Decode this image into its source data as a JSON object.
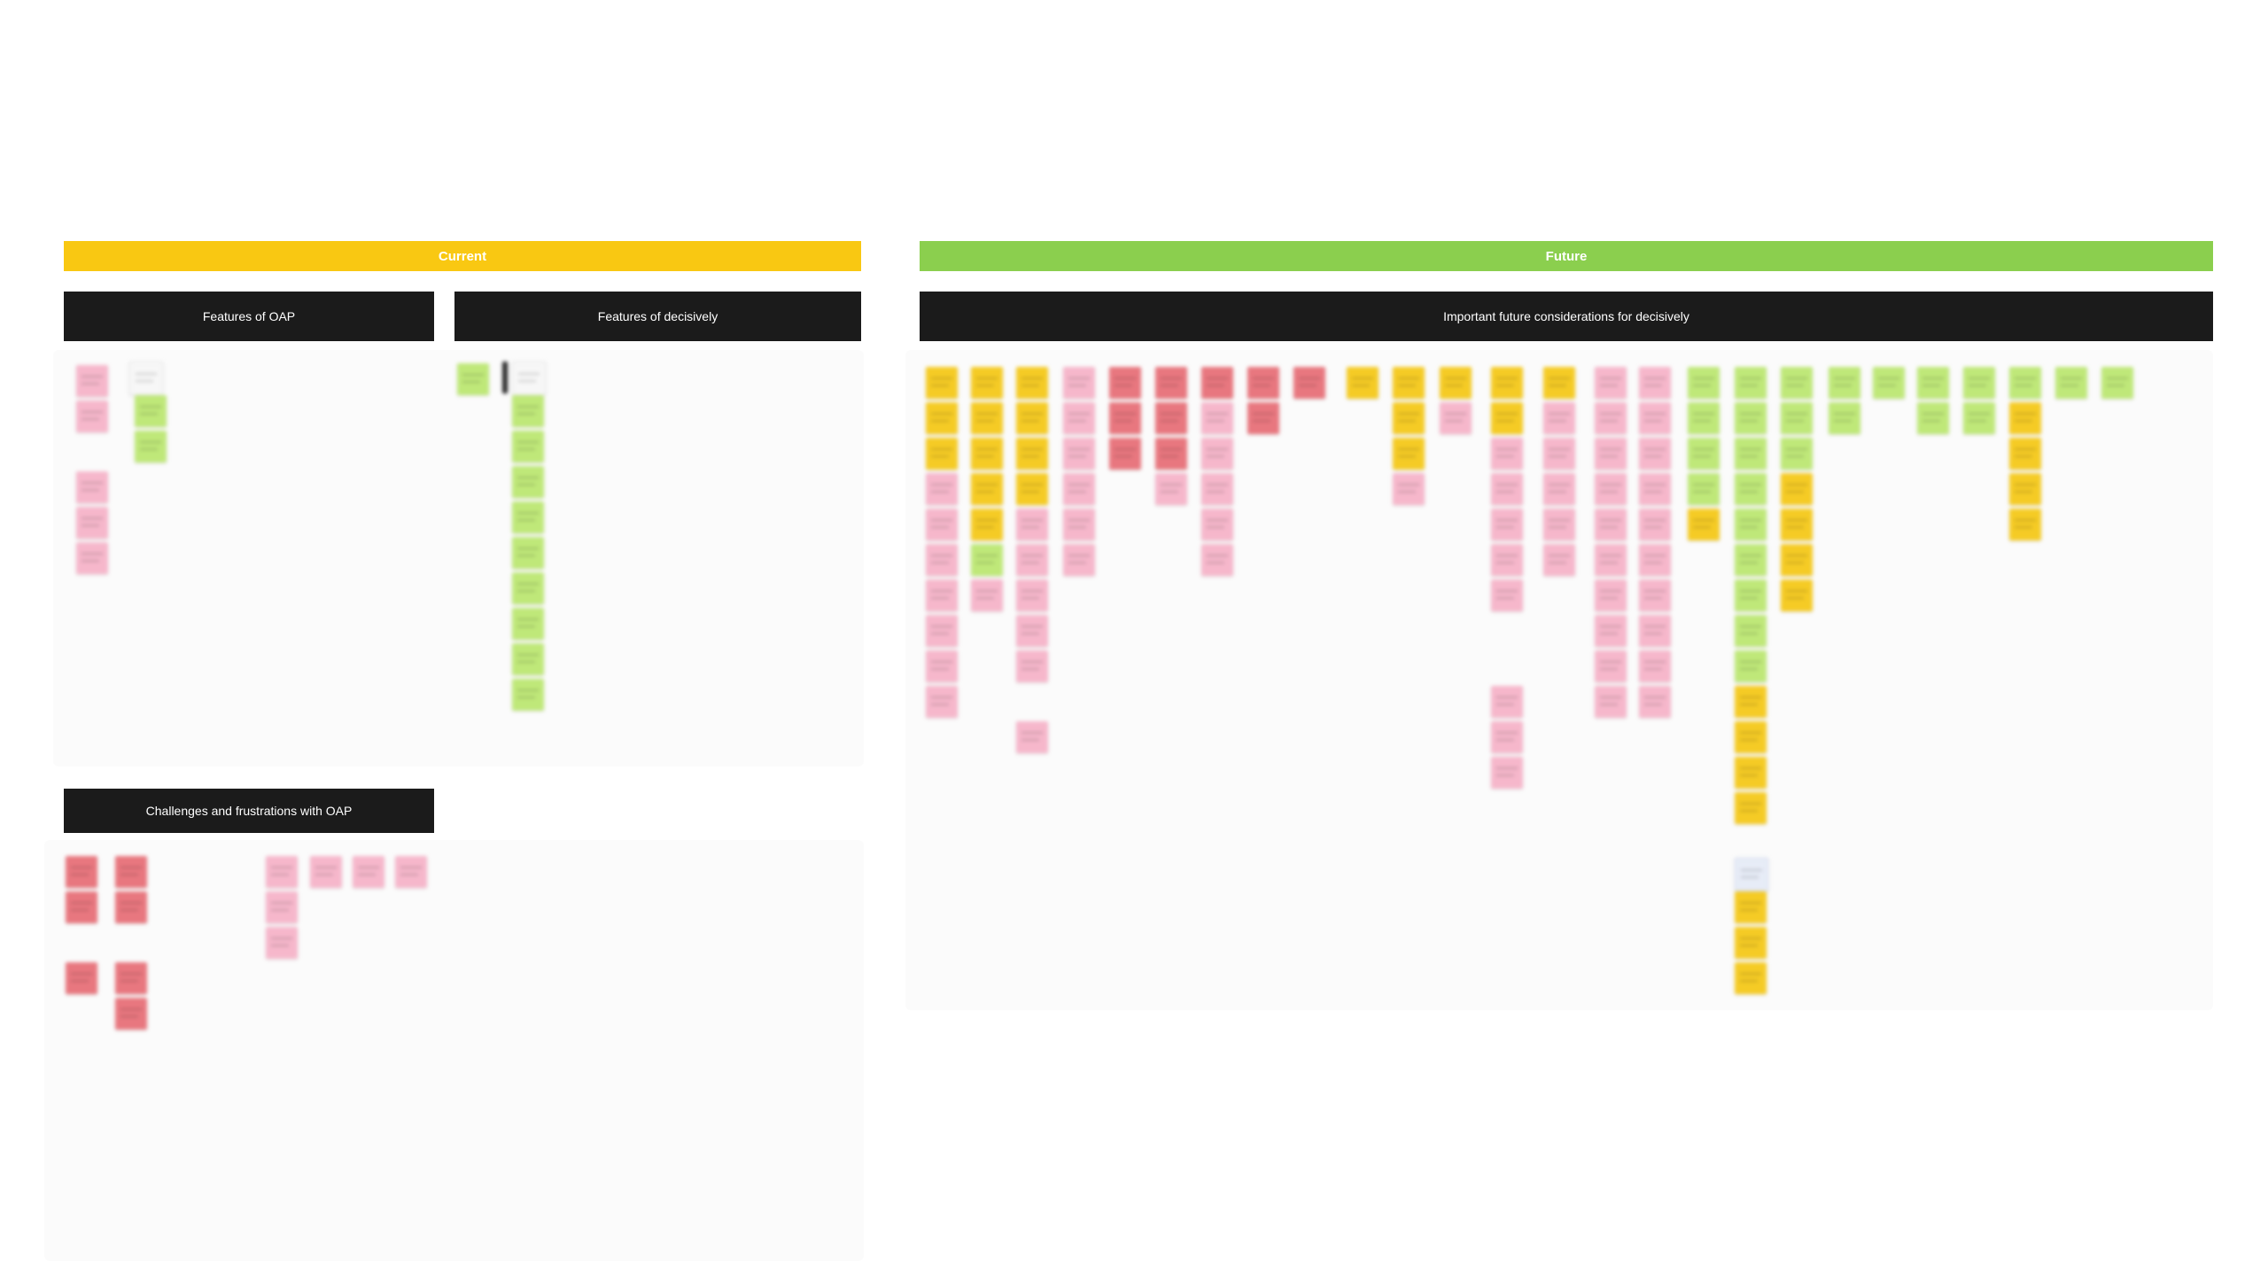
{
  "board": {
    "bands": {
      "current": {
        "label": "Current",
        "color": "#f9c812"
      },
      "future": {
        "label": "Future",
        "color": "#8bcf4e"
      }
    },
    "headings": {
      "features_oap": "Features of OAP",
      "features_decisively": "Features of decisively",
      "future_considerations": "Important future considerations for decisively",
      "challenges_oap": "Challenges and frustrations with OAP"
    },
    "note_colors": {
      "pink": "#f6b7cb",
      "red": "#e8777f",
      "yellow": "#f5cb25",
      "green": "#bfe879"
    }
  }
}
